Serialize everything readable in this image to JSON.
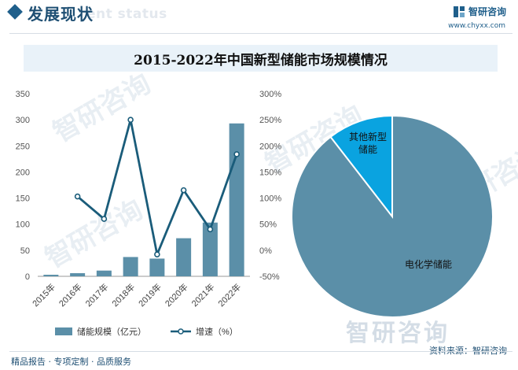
{
  "header": {
    "title": "发展现状",
    "subtitle": "ent status",
    "brand_name": "智研咨询",
    "brand_url": "www.chyxx.com"
  },
  "watermark": "智研咨询",
  "footer": {
    "left": "精品报告 · 专项定制 · 品质服务",
    "right": "资料来源：智研咨询"
  },
  "colors": {
    "bar": "#5b8fa8",
    "line": "#1a5c7a",
    "pie_main": "#5b8fa8",
    "pie_other": "#0aa3e0",
    "accent": "#1f5f8b"
  },
  "chart_data": [
    {
      "type": "bar",
      "title": "2015-2022年中国新型储能市场规模情况",
      "categories": [
        "2015年",
        "2016年",
        "2017年",
        "2018年",
        "2019年",
        "2020年",
        "2021年",
        "2022年"
      ],
      "series": [
        {
          "name": "储能规模（亿元）",
          "type": "bar",
          "axis": "left",
          "values": [
            3,
            6,
            11,
            37,
            34,
            73,
            103,
            293
          ]
        },
        {
          "name": "增速（%）",
          "type": "line",
          "axis": "right",
          "values": [
            null,
            103,
            60,
            250,
            -8,
            115,
            40,
            184
          ]
        }
      ],
      "y_left": {
        "ticks": [
          0,
          50,
          100,
          150,
          200,
          250,
          300,
          350
        ],
        "ylim": [
          0,
          350
        ]
      },
      "y_right": {
        "ticks": [
          "-50%",
          "0%",
          "50%",
          "100%",
          "150%",
          "200%",
          "250%",
          "300%"
        ],
        "ylim": [
          -50,
          300
        ]
      },
      "legend_position": "bottom"
    },
    {
      "type": "pie",
      "slices": [
        {
          "label": "电化学储能",
          "value": 89.5
        },
        {
          "label": "其他新型储能",
          "value": 10.5
        }
      ]
    }
  ]
}
